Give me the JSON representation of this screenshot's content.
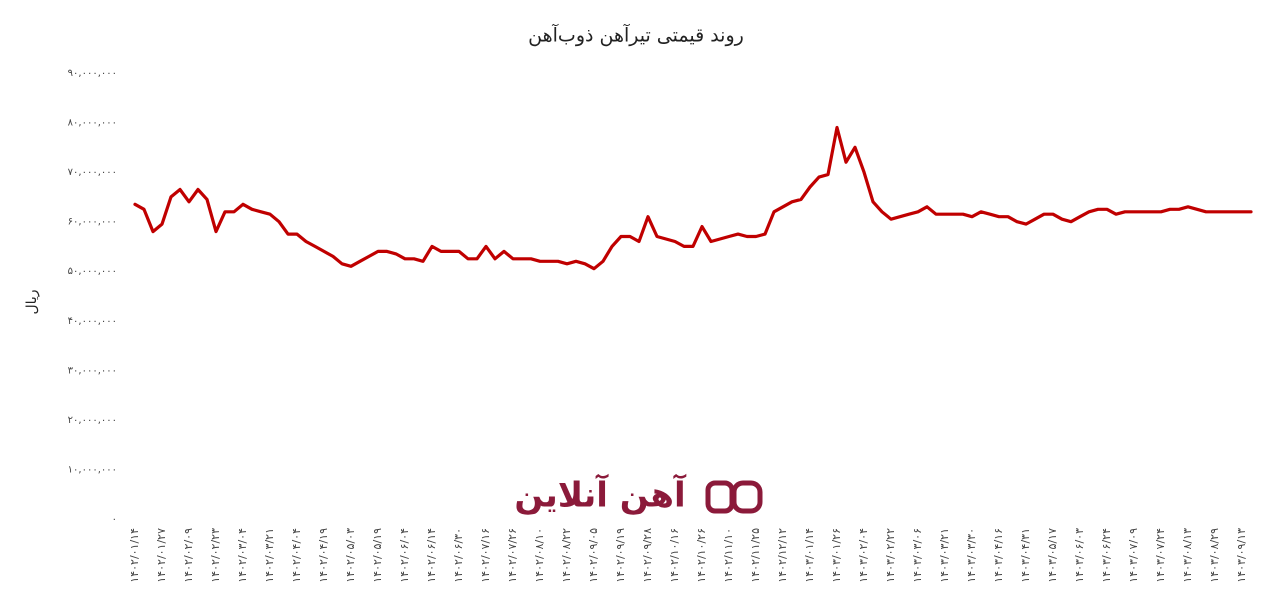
{
  "chart_data": {
    "type": "line",
    "title": "روند قیمتی تیرآهن ذوب‌آهن",
    "y_label": "ریال",
    "watermark": "آهن آنلاین",
    "categories": [
      "۱۴۰۲/۰۱/۱۴",
      null,
      null,
      "۱۴۰۲/۰۱/۲۷",
      null,
      null,
      "۱۴۰۲/۰۲/۰۹",
      null,
      null,
      "۱۴۰۲/۰۲/۲۳",
      null,
      null,
      "۱۴۰۲/۰۳/۰۴",
      null,
      null,
      "۱۴۰۲/۰۳/۲۱",
      null,
      null,
      "۱۴۰۲/۰۴/۰۴",
      null,
      null,
      "۱۴۰۲/۰۴/۱۹",
      null,
      null,
      "۱۴۰۲/۰۵/۰۳",
      null,
      null,
      "۱۴۰۲/۰۵/۱۹",
      null,
      null,
      "۱۴۰۲/۰۶/۰۴",
      null,
      null,
      "۱۴۰۲/۰۶/۱۴",
      null,
      null,
      "۱۴۰۲/۰۶/۳۰",
      null,
      null,
      "۱۴۰۲/۰۷/۱۶",
      null,
      null,
      "۱۴۰۲/۰۷/۲۶",
      null,
      null,
      "۱۴۰۲/۰۸/۱۰",
      null,
      null,
      "۱۴۰۲/۰۸/۲۲",
      null,
      null,
      "۱۴۰۲/۰۹/۰۵",
      null,
      null,
      "۱۴۰۲/۰۹/۱۹",
      null,
      null,
      "۱۴۰۲/۰۹/۲۸",
      null,
      null,
      "۱۴۰۲/۱۰/۱۶",
      null,
      null,
      "۱۴۰۲/۱۰/۲۶",
      null,
      null,
      "۱۴۰۲/۱۱/۱۰",
      null,
      null,
      "۱۴۰۲/۱۱/۲۵",
      null,
      null,
      "۱۴۰۲/۱۲/۱۲",
      null,
      null,
      "۱۴۰۳/۰۱/۱۴",
      null,
      null,
      "۱۴۰۳/۰۱/۲۶",
      null,
      null,
      "۱۴۰۳/۰۲/۰۴",
      null,
      null,
      "۱۴۰۳/۰۲/۲۲",
      null,
      null,
      "۱۴۰۳/۰۳/۰۶",
      null,
      null,
      "۱۴۰۳/۰۳/۲۱",
      null,
      null,
      "۱۴۰۳/۰۳/۳۰",
      null,
      null,
      "۱۴۰۳/۰۴/۱۶",
      null,
      null,
      "۱۴۰۳/۰۴/۳۱",
      null,
      null,
      "۱۴۰۳/۰۵/۱۷",
      null,
      null,
      "۱۴۰۳/۰۶/۰۳",
      null,
      null,
      "۱۴۰۳/۰۶/۲۴",
      null,
      null,
      "۱۴۰۳/۰۷/۰۹",
      null,
      null,
      "۱۴۰۳/۰۷/۲۴",
      null,
      null,
      "۱۴۰۳/۰۸/۱۳",
      null,
      null,
      "۱۴۰۳/۰۸/۲۹",
      null,
      null,
      "۱۴۰۳/۰۹/۱۳",
      null
    ],
    "values": [
      63500000,
      62500000,
      58000000,
      59500000,
      65000000,
      66500000,
      64000000,
      66500000,
      64500000,
      58000000,
      62000000,
      62000000,
      63500000,
      62500000,
      62000000,
      61500000,
      60000000,
      57500000,
      57500000,
      56000000,
      55000000,
      54000000,
      53000000,
      51500000,
      51000000,
      52000000,
      53000000,
      54000000,
      54000000,
      53500000,
      52500000,
      52500000,
      52000000,
      55000000,
      54000000,
      54000000,
      54000000,
      52500000,
      52500000,
      55000000,
      52500000,
      54000000,
      52500000,
      52500000,
      52500000,
      52000000,
      52000000,
      52000000,
      51500000,
      52000000,
      51500000,
      50500000,
      52000000,
      55000000,
      57000000,
      57000000,
      56000000,
      61000000,
      57000000,
      56500000,
      56000000,
      55000000,
      55000000,
      59000000,
      56000000,
      56500000,
      57000000,
      57500000,
      57000000,
      57000000,
      57500000,
      62000000,
      63000000,
      64000000,
      64500000,
      67000000,
      69000000,
      69500000,
      79000000,
      72000000,
      75000000,
      70000000,
      64000000,
      62000000,
      60500000,
      61000000,
      61500000,
      62000000,
      63000000,
      61500000,
      61500000,
      61500000,
      61500000,
      61000000,
      62000000,
      61500000,
      61000000,
      61000000,
      60000000,
      59500000,
      60500000,
      61500000,
      61500000,
      60500000,
      60000000,
      61000000,
      62000000,
      62500000,
      62500000,
      61500000,
      62000000,
      62000000,
      62000000,
      62000000,
      62000000,
      62500000,
      62500000,
      63000000,
      62500000,
      62000000,
      62000000,
      62000000,
      62000000,
      62000000,
      62000000
    ],
    "color": "#c00000",
    "ylim": [
      0,
      90000000
    ],
    "yticks": [
      {
        "value": 0,
        "label": "۰"
      },
      {
        "value": 10000000,
        "label": "۱۰,۰۰۰,۰۰۰"
      },
      {
        "value": 20000000,
        "label": "۲۰,۰۰۰,۰۰۰"
      },
      {
        "value": 30000000,
        "label": "۳۰,۰۰۰,۰۰۰"
      },
      {
        "value": 40000000,
        "label": "۴۰,۰۰۰,۰۰۰"
      },
      {
        "value": 50000000,
        "label": "۵۰,۰۰۰,۰۰۰"
      },
      {
        "value": 60000000,
        "label": "۶۰,۰۰۰,۰۰۰"
      },
      {
        "value": 70000000,
        "label": "۷۰,۰۰۰,۰۰۰"
      },
      {
        "value": 80000000,
        "label": "۸۰,۰۰۰,۰۰۰"
      },
      {
        "value": 90000000,
        "label": "۹۰,۰۰۰,۰۰۰"
      }
    ],
    "grid": false
  }
}
